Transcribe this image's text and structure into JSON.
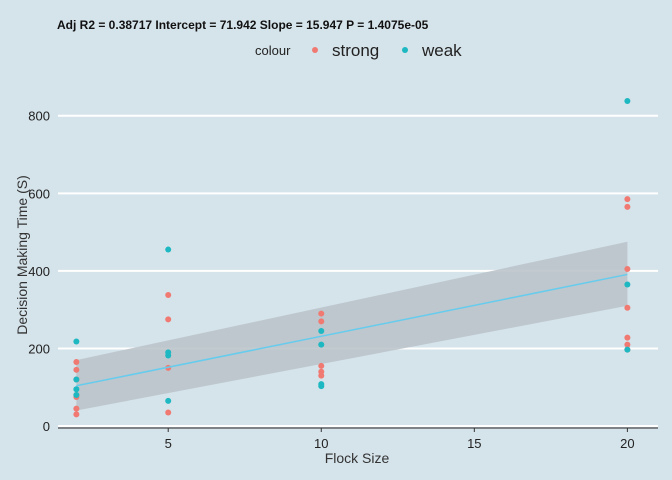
{
  "chart_data": {
    "type": "scatter",
    "title": "Adj R2 =  0.38717 Intercept = 71.942  Slope = 15.947  P = 1.4075e-05",
    "xlabel": "Flock Size",
    "ylabel": "Decision Making Time (S)",
    "xlim": [
      1.4,
      21.0
    ],
    "ylim": [
      -5,
      905
    ],
    "x_ticks": [
      5,
      10,
      15,
      20
    ],
    "y_ticks": [
      0,
      200,
      400,
      600,
      800
    ],
    "grid": "horizontal",
    "legend": {
      "title": "colour",
      "placement": "top",
      "entries": [
        "strong",
        "weak"
      ]
    },
    "series": [
      {
        "name": "strong",
        "color": "#f07a72",
        "points": [
          [
            2,
            30
          ],
          [
            2,
            45
          ],
          [
            2,
            75
          ],
          [
            2,
            80
          ],
          [
            2,
            120
          ],
          [
            2,
            145
          ],
          [
            2,
            165
          ],
          [
            5,
            35
          ],
          [
            5,
            150
          ],
          [
            5,
            275
          ],
          [
            5,
            338
          ],
          [
            10,
            130
          ],
          [
            10,
            140
          ],
          [
            10,
            155
          ],
          [
            10,
            270
          ],
          [
            10,
            290
          ],
          [
            20,
            197
          ],
          [
            20,
            210
          ],
          [
            20,
            228
          ],
          [
            20,
            305
          ],
          [
            20,
            405
          ],
          [
            20,
            565
          ],
          [
            20,
            585
          ]
        ]
      },
      {
        "name": "weak",
        "color": "#1db8c1",
        "points": [
          [
            2,
            80
          ],
          [
            2,
            95
          ],
          [
            2,
            120
          ],
          [
            2,
            218
          ],
          [
            5,
            65
          ],
          [
            5,
            182
          ],
          [
            5,
            190
          ],
          [
            5,
            455
          ],
          [
            10,
            103
          ],
          [
            10,
            108
          ],
          [
            10,
            210
          ],
          [
            10,
            245
          ],
          [
            20,
            197
          ],
          [
            20,
            365
          ],
          [
            20,
            838
          ]
        ]
      }
    ],
    "fit": {
      "intercept": 71.942,
      "slope": 15.947,
      "x_range": [
        2,
        20
      ],
      "ci": [
        [
          2,
          40,
          170
        ],
        [
          20,
          310,
          475
        ]
      ],
      "line_color": "#66ccee",
      "band_color": "#b8c2c8"
    }
  }
}
